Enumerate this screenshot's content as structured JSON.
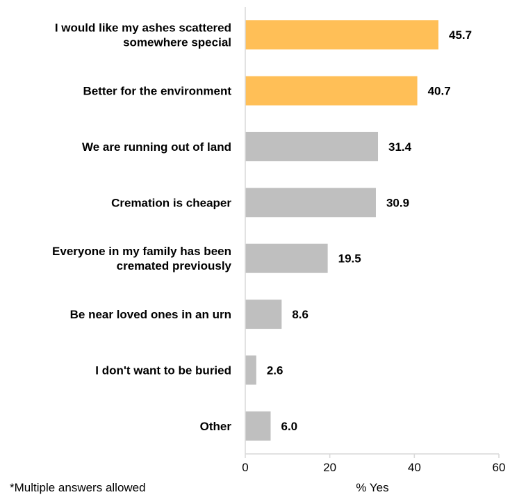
{
  "chart_data": {
    "type": "bar",
    "orientation": "horizontal",
    "categories": [
      [
        "I would like my ashes scattered",
        "somewhere special"
      ],
      [
        "Better for the environment"
      ],
      [
        "We are running out of land"
      ],
      [
        "Cremation is cheaper"
      ],
      [
        "Everyone in my family has been",
        "cremated previously"
      ],
      [
        "Be near loved ones in an urn"
      ],
      [
        "I don't want to be buried"
      ],
      [
        "Other"
      ]
    ],
    "values": [
      45.7,
      40.7,
      31.4,
      30.9,
      19.5,
      8.6,
      2.6,
      6.0
    ],
    "value_labels": [
      "45.7",
      "40.7",
      "31.4",
      "30.9",
      "19.5",
      "8.6",
      "2.6",
      "6.0"
    ],
    "highlight_colors": [
      "#FFBF57",
      "#FFBF57",
      "#BFBFBF",
      "#BFBFBF",
      "#BFBFBF",
      "#BFBFBF",
      "#BFBFBF",
      "#BFBFBF"
    ],
    "xlabel": "% Yes",
    "xlim": [
      0,
      60
    ],
    "xticks": [
      0,
      20,
      40,
      60
    ],
    "grid": false
  },
  "footnote": "*Multiple answers allowed",
  "colors": {
    "highlight": "#FFBF57",
    "default": "#BFBFBF",
    "axis": "#D9D9D9"
  }
}
